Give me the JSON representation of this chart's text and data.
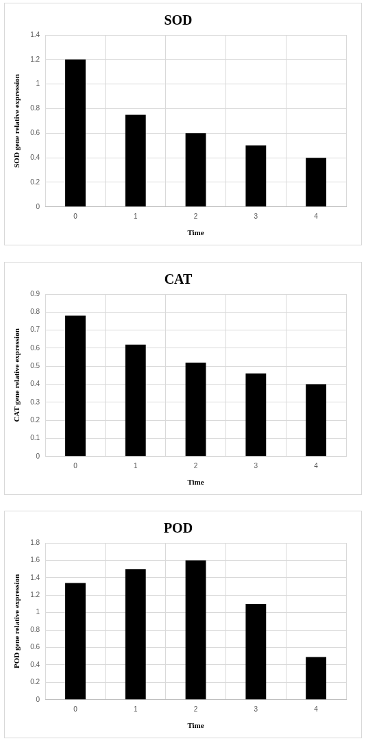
{
  "chart_data": [
    {
      "type": "bar",
      "title": "SOD",
      "xlabel": "Time",
      "ylabel": "SOD gene relative expression",
      "categories": [
        "0",
        "1",
        "2",
        "3",
        "4"
      ],
      "values": [
        1.2,
        0.75,
        0.6,
        0.5,
        0.4
      ],
      "color": "#000000",
      "ylim": [
        0,
        1.4
      ],
      "yticks": [
        0,
        0.2,
        0.4,
        0.6,
        0.8,
        1,
        1.2,
        1.4
      ],
      "grid": true,
      "legend": false
    },
    {
      "type": "bar",
      "title": "CAT",
      "xlabel": "Time",
      "ylabel": "CAT gene relative expression",
      "categories": [
        "0",
        "1",
        "2",
        "3",
        "4"
      ],
      "values": [
        0.78,
        0.62,
        0.52,
        0.46,
        0.4
      ],
      "color": "#000000",
      "ylim": [
        0,
        0.9
      ],
      "yticks": [
        0,
        0.1,
        0.2,
        0.3,
        0.4,
        0.5,
        0.6,
        0.7,
        0.8,
        0.9
      ],
      "grid": true,
      "legend": false
    },
    {
      "type": "bar",
      "title": "POD",
      "xlabel": "Time",
      "ylabel": "POD gene relative expression",
      "categories": [
        "0",
        "1",
        "2",
        "3",
        "4"
      ],
      "values": [
        1.34,
        1.5,
        1.6,
        1.1,
        0.49
      ],
      "color": "#000000",
      "ylim": [
        0,
        1.8
      ],
      "yticks": [
        0,
        0.2,
        0.4,
        0.6,
        0.8,
        1,
        1.2,
        1.4,
        1.6,
        1.8
      ],
      "grid": true,
      "legend": false
    }
  ]
}
